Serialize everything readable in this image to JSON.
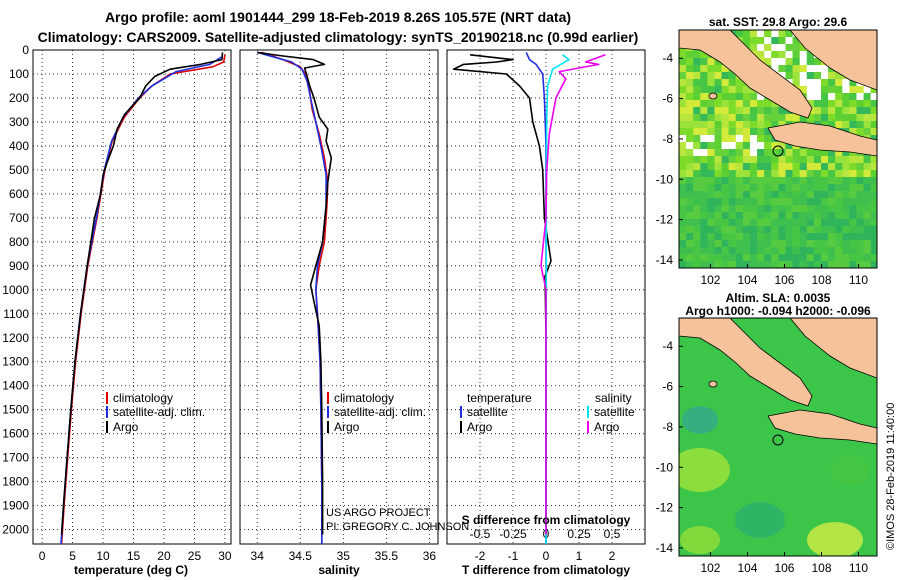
{
  "header": {
    "line1": "Argo profile: aoml 1901444_299 18-Feb-2019 8.26S 105.57E (NRT data)",
    "line2": "Climatology: CARS2009. Satellite-adjusted climatology: synTS_20190218.nc (0.99d earlier)"
  },
  "credit": "©IMOS 28-Feb-2019 11:40:00",
  "project": {
    "line1": "US ARGO PROJECT",
    "line2": "PI: GREGORY C. JOHNSON"
  },
  "colors": {
    "climatology": "#e00000",
    "satellite": "#1f2fe0",
    "argo": "#000000",
    "sal_sat": "#00e5ee",
    "sal_argo": "#ee00ee",
    "land": "#f5c29a"
  },
  "chart_data": [
    {
      "type": "line",
      "xlabel": "temperature (deg C)",
      "ylim": [
        0,
        2060
      ],
      "xlim": [
        -1.5,
        31
      ],
      "x_ticks": [
        0,
        5,
        10,
        15,
        20,
        25,
        30
      ],
      "y_ticks": [
        0,
        100,
        200,
        300,
        400,
        500,
        600,
        700,
        800,
        900,
        1000,
        1100,
        1200,
        1300,
        1400,
        1500,
        1600,
        1700,
        1800,
        1900,
        2000
      ],
      "legend": [
        "climatology",
        "satellite-adj. clim.",
        "Argo"
      ],
      "series": [
        {
          "name": "climatology",
          "color": "#e00000",
          "points": [
            [
              30,
              20
            ],
            [
              29.8,
              50
            ],
            [
              28,
              70
            ],
            [
              21,
              100
            ],
            [
              18,
              150
            ],
            [
              16,
              200
            ],
            [
              13.5,
              280
            ],
            [
              11.5,
              380
            ],
            [
              10.3,
              500
            ],
            [
              9,
              700
            ],
            [
              7.5,
              900
            ],
            [
              6.4,
              1100
            ],
            [
              5.5,
              1300
            ],
            [
              4.8,
              1500
            ],
            [
              4.2,
              1700
            ],
            [
              3.6,
              1900
            ],
            [
              3.2,
              2060
            ]
          ]
        },
        {
          "name": "satellite-adj. clim.",
          "color": "#1f2fe0",
          "points": [
            [
              29.4,
              30
            ],
            [
              27.5,
              60
            ],
            [
              22,
              90
            ],
            [
              18,
              150
            ],
            [
              15.8,
              200
            ],
            [
              13.3,
              280
            ],
            [
              11.4,
              380
            ],
            [
              10.2,
              500
            ],
            [
              8.9,
              700
            ],
            [
              7.4,
              900
            ],
            [
              6.3,
              1100
            ],
            [
              5.4,
              1300
            ],
            [
              4.7,
              1500
            ],
            [
              4.1,
              1700
            ],
            [
              3.5,
              1900
            ],
            [
              3.1,
              2060
            ]
          ]
        },
        {
          "name": "Argo",
          "color": "#000000",
          "points": [
            [
              29.6,
              10
            ],
            [
              29.5,
              40
            ],
            [
              26,
              60
            ],
            [
              21,
              80
            ],
            [
              18.5,
              110
            ],
            [
              17,
              150
            ],
            [
              16,
              200
            ],
            [
              13.5,
              270
            ],
            [
              12.3,
              330
            ],
            [
              11.7,
              400
            ],
            [
              10.8,
              460
            ],
            [
              10,
              520
            ],
            [
              9.6,
              600
            ],
            [
              8.6,
              700
            ],
            [
              7.4,
              900
            ],
            [
              6.3,
              1100
            ],
            [
              5.4,
              1300
            ],
            [
              4.7,
              1500
            ],
            [
              4.1,
              1700
            ],
            [
              3.5,
              1900
            ],
            [
              3.2,
              2020
            ]
          ]
        }
      ]
    },
    {
      "type": "line",
      "xlabel": "salinity",
      "ylim": [
        0,
        2060
      ],
      "xlim": [
        33.8,
        36.1
      ],
      "x_ticks": [
        34,
        34.5,
        35,
        35.5,
        36
      ],
      "legend": [
        "climatology",
        "satellite-adj. clim.",
        "Argo"
      ],
      "series": [
        {
          "name": "climatology",
          "color": "#e00000",
          "points": [
            [
              34.05,
              10
            ],
            [
              34.3,
              40
            ],
            [
              34.5,
              70
            ],
            [
              34.58,
              110
            ],
            [
              34.6,
              150
            ],
            [
              34.64,
              250
            ],
            [
              34.72,
              350
            ],
            [
              34.78,
              450
            ],
            [
              34.82,
              550
            ],
            [
              34.81,
              650
            ],
            [
              34.78,
              800
            ],
            [
              34.72,
              900
            ],
            [
              34.68,
              1000
            ],
            [
              34.7,
              1100
            ],
            [
              34.73,
              1300
            ],
            [
              34.74,
              1500
            ],
            [
              34.75,
              1800
            ],
            [
              34.75,
              2060
            ]
          ]
        },
        {
          "name": "satellite-adj. clim.",
          "color": "#1f2fe0",
          "points": [
            [
              34.0,
              10
            ],
            [
              34.2,
              30
            ],
            [
              34.4,
              50
            ],
            [
              34.52,
              80
            ],
            [
              34.58,
              130
            ],
            [
              34.62,
              200
            ],
            [
              34.68,
              300
            ],
            [
              34.75,
              420
            ],
            [
              34.8,
              520
            ],
            [
              34.8,
              650
            ],
            [
              34.76,
              800
            ],
            [
              34.7,
              900
            ],
            [
              34.68,
              1000
            ],
            [
              34.7,
              1100
            ],
            [
              34.73,
              1300
            ],
            [
              34.74,
              1500
            ],
            [
              34.75,
              1800
            ],
            [
              34.75,
              2060
            ]
          ]
        },
        {
          "name": "Argo",
          "color": "#000000",
          "points": [
            [
              34.0,
              10
            ],
            [
              34.3,
              25
            ],
            [
              34.65,
              40
            ],
            [
              34.78,
              60
            ],
            [
              34.55,
              75
            ],
            [
              34.58,
              110
            ],
            [
              34.61,
              150
            ],
            [
              34.66,
              200
            ],
            [
              34.72,
              280
            ],
            [
              34.82,
              330
            ],
            [
              34.8,
              380
            ],
            [
              34.86,
              450
            ],
            [
              34.82,
              550
            ],
            [
              34.8,
              650
            ],
            [
              34.76,
              800
            ],
            [
              34.68,
              900
            ],
            [
              34.62,
              980
            ],
            [
              34.66,
              1050
            ],
            [
              34.72,
              1150
            ],
            [
              34.74,
              1300
            ],
            [
              34.75,
              1500
            ],
            [
              34.76,
              1800
            ],
            [
              34.76,
              2020
            ]
          ]
        }
      ]
    },
    {
      "type": "line",
      "xlabel": "T difference from climatology",
      "xlabel_top": "S difference from climatology",
      "ylim": [
        0,
        2060
      ],
      "xlim": [
        -3,
        3
      ],
      "x_ticks": [
        -2,
        -1,
        0,
        1,
        2
      ],
      "x_ticks_top": [
        "-0.5",
        "-0.25",
        "0",
        "0.25",
        "0.5"
      ],
      "legend_left_title": "temperature",
      "legend_right_title": "salinity",
      "legend_left": [
        "satellite",
        "Argo"
      ],
      "legend_right": [
        "satellite",
        "Argo"
      ],
      "series": [
        {
          "name": "satellite",
          "color": "#1f2fe0",
          "points": [
            [
              -0.6,
              10
            ],
            [
              -0.5,
              40
            ],
            [
              -0.3,
              60
            ],
            [
              -0.1,
              100
            ],
            [
              -0.05,
              200
            ],
            [
              0,
              400
            ],
            [
              0,
              800
            ],
            [
              0,
              1200
            ],
            [
              0,
              1600
            ],
            [
              0,
              2060
            ]
          ]
        },
        {
          "name": "Argo",
          "color": "#000000",
          "points": [
            [
              -2.3,
              20
            ],
            [
              -1.0,
              40
            ],
            [
              -1.5,
              50
            ],
            [
              -2.5,
              60
            ],
            [
              -2.8,
              80
            ],
            [
              -1.2,
              100
            ],
            [
              -0.8,
              150
            ],
            [
              -0.5,
              200
            ],
            [
              -0.4,
              300
            ],
            [
              -0.2,
              400
            ],
            [
              -0.1,
              500
            ],
            [
              -0.05,
              700
            ],
            [
              0.15,
              880
            ],
            [
              -0.05,
              950
            ],
            [
              -0.02,
              1000
            ],
            [
              0,
              1200
            ],
            [
              0,
              1500
            ],
            [
              0,
              1800
            ],
            [
              0,
              2020
            ]
          ]
        },
        {
          "name": "satellite",
          "color": "#00e5ee",
          "points": [
            [
              0.5,
              20
            ],
            [
              0.7,
              40
            ],
            [
              0.2,
              80
            ],
            [
              0.05,
              150
            ],
            [
              0.02,
              300
            ],
            [
              0.01,
              600
            ],
            [
              0.01,
              1000
            ],
            [
              0.0,
              1500
            ],
            [
              0,
              2060
            ]
          ]
        },
        {
          "name": "Argo",
          "color": "#ee00ee",
          "points": [
            [
              1.8,
              20
            ],
            [
              1.2,
              50
            ],
            [
              1.6,
              60
            ],
            [
              0.4,
              90
            ],
            [
              0.6,
              120
            ],
            [
              0.3,
              200
            ],
            [
              0.1,
              350
            ],
            [
              0.02,
              500
            ],
            [
              0,
              700
            ],
            [
              -0.15,
              900
            ],
            [
              0.0,
              1000
            ],
            [
              0,
              1200
            ],
            [
              0,
              1500
            ],
            [
              0,
              1800
            ],
            [
              0,
              2020
            ]
          ]
        }
      ]
    },
    {
      "type": "heatmap",
      "title": "sat. SST: 29.8 Argo: 29.6",
      "xlim": [
        100.3,
        111
      ],
      "ylim": [
        -14.4,
        -2.6
      ],
      "x_ticks": [
        102,
        104,
        106,
        108,
        110
      ],
      "y_ticks": [
        -4,
        -6,
        -8,
        -10,
        -12,
        -14
      ],
      "argo_position": [
        105.57,
        -8.26
      ]
    },
    {
      "type": "heatmap",
      "title": "Altim. SLA: 0.0035",
      "subtitle": "Argo h1000: -0.094 h2000: -0.096",
      "xlim": [
        100.3,
        111
      ],
      "ylim": [
        -14.4,
        -2.6
      ],
      "x_ticks": [
        102,
        104,
        106,
        108,
        110
      ],
      "y_ticks": [
        -4,
        -6,
        -8,
        -10,
        -12,
        -14
      ],
      "argo_position": [
        105.57,
        -8.26
      ]
    }
  ]
}
